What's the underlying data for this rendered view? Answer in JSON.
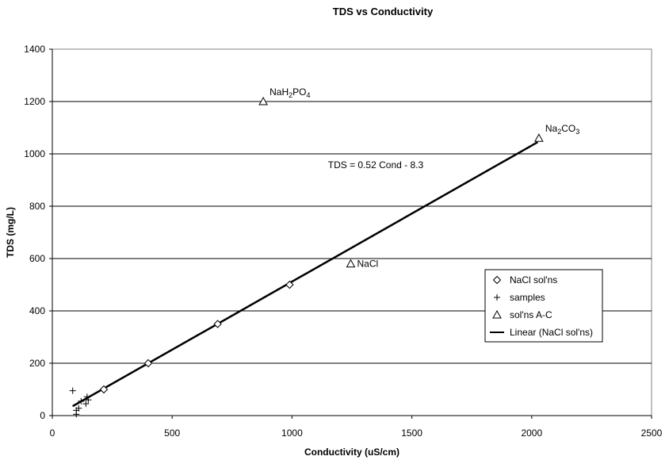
{
  "chart_data": {
    "type": "scatter",
    "title": "TDS vs Conductivity",
    "xlabel": "Conductivity (uS/cm)",
    "ylabel": "TDS (mg/L)",
    "xlim": [
      0,
      2500
    ],
    "ylim": [
      0,
      1400
    ],
    "xticks": [
      "0",
      "500",
      "1000",
      "1500",
      "2000",
      "2500"
    ],
    "yticks": [
      "0",
      "200",
      "400",
      "600",
      "800",
      "1000",
      "1200",
      "1400"
    ],
    "grid": "horizontal major gridlines",
    "legend_position": "right",
    "series": [
      {
        "name": "NaCl sol'ns",
        "marker": "diamond",
        "points": [
          [
            215,
            100
          ],
          [
            400,
            200
          ],
          [
            690,
            350
          ],
          [
            990,
            500
          ]
        ]
      },
      {
        "name": "samples",
        "marker": "plus",
        "points": [
          [
            85,
            95
          ],
          [
            100,
            20
          ],
          [
            100,
            5
          ],
          [
            110,
            28
          ],
          [
            120,
            55
          ],
          [
            140,
            45
          ],
          [
            145,
            72
          ],
          [
            150,
            60
          ]
        ]
      },
      {
        "name": "sol'ns A-C",
        "marker": "triangle",
        "points": [
          [
            880,
            1200
          ],
          [
            2030,
            1060
          ],
          [
            1245,
            580
          ]
        ]
      },
      {
        "name": "Linear (NaCl sol'ns)",
        "type": "line",
        "color": "#000000",
        "points": [
          [
            85,
            36
          ],
          [
            2025,
            1045
          ]
        ]
      }
    ],
    "point_labels": [
      {
        "x": 880,
        "y": 1200,
        "parts": [
          {
            "t": "NaH"
          },
          {
            "t": "2",
            "sub": true
          },
          {
            "t": "PO"
          },
          {
            "t": "4",
            "sub": true
          }
        ]
      },
      {
        "x": 2030,
        "y": 1060,
        "parts": [
          {
            "t": "Na"
          },
          {
            "t": "2",
            "sub": true
          },
          {
            "t": "CO"
          },
          {
            "t": "3",
            "sub": true
          }
        ]
      },
      {
        "x": 1245,
        "y": 580,
        "parts": [
          {
            "t": "NaCl"
          }
        ]
      }
    ],
    "annotations": [
      {
        "text": "TDS = 0.52 Cond - 8.3",
        "x": 1150,
        "y": 945
      }
    ]
  }
}
